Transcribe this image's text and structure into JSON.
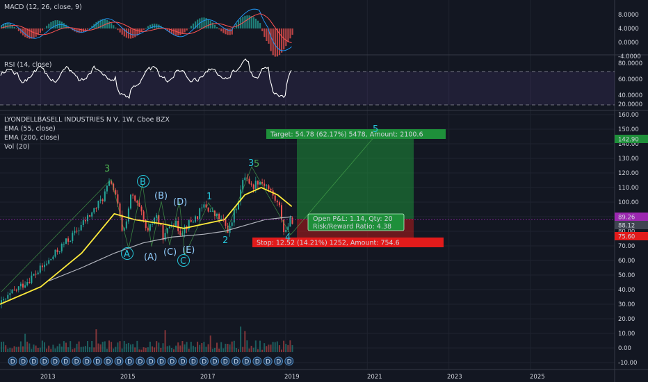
{
  "symbol_legend": {
    "title": "LYONDELLBASELL INDUSTRIES N V, 1W, Cboe BZX",
    "ema55": "EMA (55, close)",
    "ema200": "EMA (200, close)",
    "vol": "Vol (20)"
  },
  "macd": {
    "label": "MACD (12, 26, close, 9)",
    "ticks": [
      "8.0000",
      "4.0000",
      "0.0000",
      "-4.0000"
    ]
  },
  "rsi": {
    "label": "RSI (14, close)",
    "ticks": [
      "80.0000",
      "60.0000",
      "40.0000",
      "20.0000"
    ]
  },
  "price_ticks": [
    "160.00",
    "150.00",
    "140.00",
    "130.00",
    "120.00",
    "110.00",
    "100.00",
    "90.00",
    "80.00",
    "70.00",
    "60.00",
    "50.00",
    "40.00",
    "30.00",
    "20.00",
    "10.00",
    "0.00",
    "-10.00"
  ],
  "price_badges": [
    {
      "text": "142.90",
      "color": "#1e8f3a"
    },
    {
      "text": "89.26",
      "color": "#9c27b0"
    },
    {
      "text": "88.12",
      "color": "#3f4451"
    },
    {
      "text": "75.60",
      "color": "#e21b1b"
    }
  ],
  "x_ticks": [
    "2013",
    "2015",
    "2017",
    "2019",
    "2021",
    "2023",
    "2025"
  ],
  "position": {
    "target": "Target: 54.78 (62.17%) 5478, Amount: 2100.6",
    "open": "Open P&L: 1.14, Qty: 20",
    "rr": "Risk/Reward Ratio: 4.38",
    "stop": "Stop: 12.52 (14.21%) 1252, Amount: 754.6"
  },
  "waves": [
    {
      "text": "3",
      "color": "#4caf50",
      "circle": false
    },
    {
      "text": "B",
      "color": "#26c6da",
      "circle": true
    },
    {
      "text": "(B)",
      "color": "#90caf9",
      "circle": false
    },
    {
      "text": "(D)",
      "color": "#90caf9",
      "circle": false
    },
    {
      "text": "1",
      "color": "#26c6da",
      "circle": false
    },
    {
      "text": "3",
      "color": "#26c6da",
      "circle": false
    },
    {
      "text": "5",
      "color": "#4caf50",
      "circle": false
    },
    {
      "text": "5",
      "color": "#26c6da",
      "circle": false
    },
    {
      "text": "A",
      "color": "#26c6da",
      "circle": true
    },
    {
      "text": "(A)",
      "color": "#90caf9",
      "circle": false
    },
    {
      "text": "(C)",
      "color": "#90caf9",
      "circle": false
    },
    {
      "text": "(E)",
      "color": "#90caf9",
      "circle": false
    },
    {
      "text": "C",
      "color": "#26c6da",
      "circle": true
    },
    {
      "text": "2",
      "color": "#26c6da",
      "circle": false
    },
    {
      "text": "4",
      "color": "#26c6da",
      "circle": false
    }
  ],
  "dividend_marker": "D",
  "chart_data": {
    "type": "line",
    "title": "LYONDELLBASELL INDUSTRIES N V, 1W, Cboe BZX",
    "x_range": [
      "2012",
      "2026"
    ],
    "price_ylim": [
      -10,
      160
    ],
    "price_series": {
      "name": "LYONDELLBASELL INDUSTRIES N V",
      "x": [
        2012.0,
        2012.3,
        2012.6,
        2012.9,
        2013.2,
        2013.5,
        2013.8,
        2014.0,
        2014.3,
        2014.5,
        2014.7,
        2014.85,
        2015.0,
        2015.2,
        2015.4,
        2015.6,
        2015.8,
        2016.0,
        2016.2,
        2016.4,
        2016.6,
        2016.8,
        2017.0,
        2017.2,
        2017.4,
        2017.6,
        2017.8,
        2018.0,
        2018.15,
        2018.3,
        2018.5,
        2018.7,
        2018.85,
        2018.95,
        2019.05,
        2019.15
      ],
      "y": [
        30,
        38,
        45,
        52,
        60,
        70,
        78,
        85,
        95,
        103,
        115,
        100,
        78,
        105,
        95,
        78,
        92,
        75,
        88,
        80,
        85,
        90,
        98,
        92,
        88,
        80,
        100,
        120,
        110,
        115,
        112,
        103,
        95,
        78,
        85,
        88
      ]
    },
    "ema55": {
      "name": "EMA (55, close)",
      "x": [
        2012.0,
        2013.0,
        2014.0,
        2014.8,
        2015.3,
        2016.0,
        2016.5,
        2017.0,
        2017.5,
        2018.0,
        2018.4,
        2018.8,
        2019.15
      ],
      "y": [
        30,
        42,
        65,
        92,
        88,
        85,
        82,
        85,
        88,
        105,
        110,
        105,
        97
      ]
    },
    "ema200": {
      "name": "EMA (200, close)",
      "x": [
        2013.2,
        2014.0,
        2014.8,
        2015.5,
        2016.2,
        2017.0,
        2017.5,
        2018.0,
        2018.5,
        2019.15
      ],
      "y": [
        46,
        55,
        65,
        72,
        76,
        78,
        80,
        84,
        88,
        90
      ]
    },
    "macd": {
      "label": "MACD (12, 26, close, 9)",
      "ylim": [
        -6,
        9
      ]
    },
    "rsi": {
      "label": "RSI (14, close)",
      "ylim": [
        10,
        90
      ],
      "levels": [
        70,
        30
      ]
    },
    "position_tool": {
      "entry": 88.12,
      "target": 142.9,
      "stop": 75.6,
      "qty": 20
    },
    "grid": true
  }
}
